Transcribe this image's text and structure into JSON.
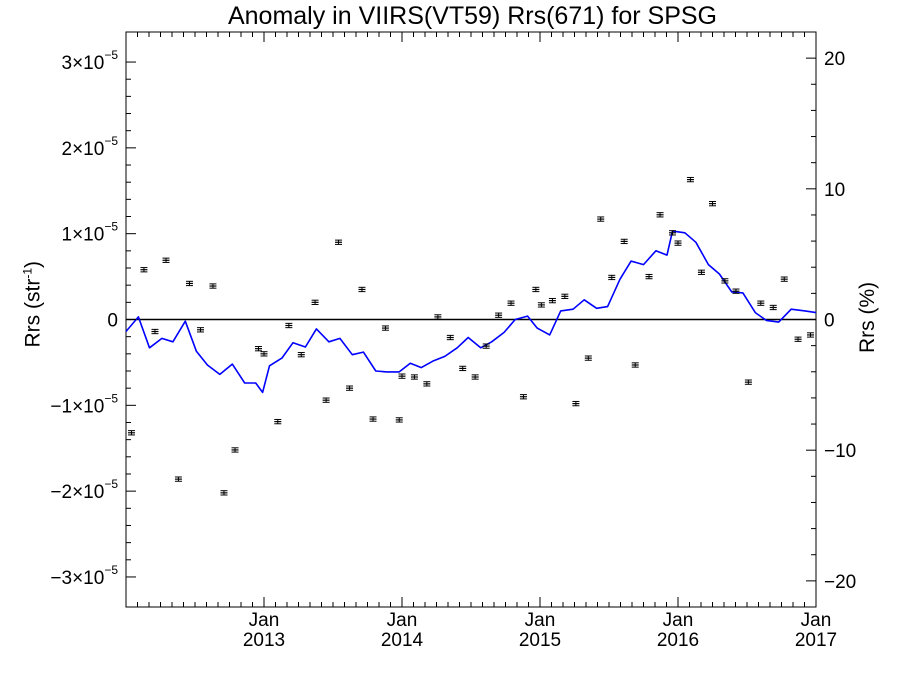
{
  "chart_data": {
    "type": "line",
    "title": "Anomaly in VIIRS(VT59) Rrs(671) for SPSG",
    "ylabel": "Rrs (str",
    "ylabel_sup": "-1",
    "ylabel_suffix": ")",
    "ylabel_right": "Rrs (%)",
    "xlim": [
      2012.0,
      2017.0
    ],
    "ylim": [
      -3.35e-05,
      3.35e-05
    ],
    "ylim_right": [
      -22,
      22
    ],
    "x_ticks": [
      {
        "x": 2013.0,
        "label1": "Jan",
        "label2": "2013"
      },
      {
        "x": 2014.0,
        "label1": "Jan",
        "label2": "2014"
      },
      {
        "x": 2015.0,
        "label1": "Jan",
        "label2": "2015"
      },
      {
        "x": 2016.0,
        "label1": "Jan",
        "label2": "2016"
      },
      {
        "x": 2017.0,
        "label1": "Jan",
        "label2": "2017"
      }
    ],
    "y_ticks": [
      {
        "y": 3e-05,
        "mantissa": "3×10",
        "exp": "−5"
      },
      {
        "y": 2e-05,
        "mantissa": "2×10",
        "exp": "−5"
      },
      {
        "y": 1e-05,
        "mantissa": "1×10",
        "exp": "−5"
      },
      {
        "y": 0,
        "mantissa": "0",
        "exp": ""
      },
      {
        "y": -1e-05,
        "mantissa": "−1×10",
        "exp": "−5"
      },
      {
        "y": -2e-05,
        "mantissa": "−2×10",
        "exp": "−5"
      },
      {
        "y": -3e-05,
        "mantissa": "−3×10",
        "exp": "−5"
      }
    ],
    "y_ticks_right": [
      {
        "y": 20,
        "label": "20"
      },
      {
        "y": 10,
        "label": "10"
      },
      {
        "y": 0,
        "label": "0"
      },
      {
        "y": -10,
        "label": "−10"
      },
      {
        "y": -20,
        "label": "−20"
      }
    ],
    "zero_line": true,
    "colors": {
      "line": "#0000ff",
      "points": "#000000",
      "axis": "#000000"
    },
    "series": [
      {
        "type": "errorbar_points",
        "err": 2.5e-07,
        "points": [
          {
            "x": 2012.04,
            "y": -1.32e-05
          },
          {
            "x": 2012.13,
            "y": 5.8e-06
          },
          {
            "x": 2012.21,
            "y": -1.4e-06
          },
          {
            "x": 2012.29,
            "y": 6.9e-06
          },
          {
            "x": 2012.38,
            "y": -1.86e-05
          },
          {
            "x": 2012.46,
            "y": 4.2e-06
          },
          {
            "x": 2012.54,
            "y": -1.2e-06
          },
          {
            "x": 2012.63,
            "y": 3.9e-06
          },
          {
            "x": 2012.71,
            "y": -2.02e-05
          },
          {
            "x": 2012.79,
            "y": -1.52e-05
          },
          {
            "x": 2012.96,
            "y": -3.4e-06
          },
          {
            "x": 2013.0,
            "y": -4e-06
          },
          {
            "x": 2013.1,
            "y": -1.19e-05
          },
          {
            "x": 2013.18,
            "y": -7e-07
          },
          {
            "x": 2013.27,
            "y": -4.1e-06
          },
          {
            "x": 2013.37,
            "y": 2e-06
          },
          {
            "x": 2013.45,
            "y": -9.4e-06
          },
          {
            "x": 2013.54,
            "y": 9e-06
          },
          {
            "x": 2013.62,
            "y": -8e-06
          },
          {
            "x": 2013.71,
            "y": 3.5e-06
          },
          {
            "x": 2013.79,
            "y": -1.16e-05
          },
          {
            "x": 2013.88,
            "y": -1e-06
          },
          {
            "x": 2013.98,
            "y": -1.17e-05
          },
          {
            "x": 2014.0,
            "y": -6.6e-06
          },
          {
            "x": 2014.09,
            "y": -6.7e-06
          },
          {
            "x": 2014.18,
            "y": -7.5e-06
          },
          {
            "x": 2014.26,
            "y": 3e-07
          },
          {
            "x": 2014.35,
            "y": -2.1e-06
          },
          {
            "x": 2014.44,
            "y": -5.7e-06
          },
          {
            "x": 2014.53,
            "y": -6.7e-06
          },
          {
            "x": 2014.61,
            "y": -3.1e-06
          },
          {
            "x": 2014.7,
            "y": 5e-07
          },
          {
            "x": 2014.79,
            "y": 1.9e-06
          },
          {
            "x": 2014.88,
            "y": -9e-06
          },
          {
            "x": 2014.97,
            "y": 3.5e-06
          },
          {
            "x": 2015.01,
            "y": 1.7e-06
          },
          {
            "x": 2015.09,
            "y": 2.2e-06
          },
          {
            "x": 2015.18,
            "y": 2.7e-06
          },
          {
            "x": 2015.26,
            "y": -9.8e-06
          },
          {
            "x": 2015.35,
            "y": -4.5e-06
          },
          {
            "x": 2015.44,
            "y": 1.17e-05
          },
          {
            "x": 2015.52,
            "y": 4.9e-06
          },
          {
            "x": 2015.61,
            "y": 9.1e-06
          },
          {
            "x": 2015.69,
            "y": -5.3e-06
          },
          {
            "x": 2015.79,
            "y": 5e-06
          },
          {
            "x": 2015.87,
            "y": 1.22e-05
          },
          {
            "x": 2015.96,
            "y": 1.01e-05
          },
          {
            "x": 2016.0,
            "y": 8.9e-06
          },
          {
            "x": 2016.09,
            "y": 1.63e-05
          },
          {
            "x": 2016.17,
            "y": 5.5e-06
          },
          {
            "x": 2016.25,
            "y": 1.35e-05
          },
          {
            "x": 2016.34,
            "y": 4.5e-06
          },
          {
            "x": 2016.42,
            "y": 3.3e-06
          },
          {
            "x": 2016.51,
            "y": -7.3e-06
          },
          {
            "x": 2016.6,
            "y": 1.9e-06
          },
          {
            "x": 2016.69,
            "y": 1.4e-06
          },
          {
            "x": 2016.77,
            "y": 4.7e-06
          },
          {
            "x": 2016.87,
            "y": -2.3e-06
          },
          {
            "x": 2016.96,
            "y": -1.8e-06
          }
        ]
      },
      {
        "type": "line",
        "points": [
          {
            "x": 2012.0,
            "y": -1.4e-06
          },
          {
            "x": 2012.09,
            "y": 3e-07
          },
          {
            "x": 2012.17,
            "y": -3.3e-06
          },
          {
            "x": 2012.26,
            "y": -2.2e-06
          },
          {
            "x": 2012.34,
            "y": -2.6e-06
          },
          {
            "x": 2012.43,
            "y": -2e-07
          },
          {
            "x": 2012.51,
            "y": -3.7e-06
          },
          {
            "x": 2012.59,
            "y": -5.3e-06
          },
          {
            "x": 2012.68,
            "y": -6.4e-06
          },
          {
            "x": 2012.77,
            "y": -5.2e-06
          },
          {
            "x": 2012.86,
            "y": -7.4e-06
          },
          {
            "x": 2012.94,
            "y": -7.4e-06
          },
          {
            "x": 2012.99,
            "y": -8.5e-06
          },
          {
            "x": 2013.04,
            "y": -5.4e-06
          },
          {
            "x": 2013.13,
            "y": -4.5e-06
          },
          {
            "x": 2013.21,
            "y": -2.7e-06
          },
          {
            "x": 2013.3,
            "y": -3.2e-06
          },
          {
            "x": 2013.38,
            "y": -1.1e-06
          },
          {
            "x": 2013.47,
            "y": -2.6e-06
          },
          {
            "x": 2013.55,
            "y": -2.2e-06
          },
          {
            "x": 2013.64,
            "y": -4.1e-06
          },
          {
            "x": 2013.72,
            "y": -3.8e-06
          },
          {
            "x": 2013.81,
            "y": -6e-06
          },
          {
            "x": 2013.89,
            "y": -6.1e-06
          },
          {
            "x": 2013.98,
            "y": -6.1e-06
          },
          {
            "x": 2014.06,
            "y": -5.1e-06
          },
          {
            "x": 2014.14,
            "y": -5.6e-06
          },
          {
            "x": 2014.23,
            "y": -4.8e-06
          },
          {
            "x": 2014.31,
            "y": -4.3e-06
          },
          {
            "x": 2014.4,
            "y": -3.3e-06
          },
          {
            "x": 2014.48,
            "y": -2.1e-06
          },
          {
            "x": 2014.57,
            "y": -3.3e-06
          },
          {
            "x": 2014.65,
            "y": -2.6e-06
          },
          {
            "x": 2014.74,
            "y": -1.5e-06
          },
          {
            "x": 2014.82,
            "y": 0.0
          },
          {
            "x": 2014.91,
            "y": 4e-07
          },
          {
            "x": 2014.98,
            "y": -1e-06
          },
          {
            "x": 2015.07,
            "y": -1.8e-06
          },
          {
            "x": 2015.15,
            "y": 1e-06
          },
          {
            "x": 2015.24,
            "y": 1.2e-06
          },
          {
            "x": 2015.32,
            "y": 2.3e-06
          },
          {
            "x": 2015.41,
            "y": 1.3e-06
          },
          {
            "x": 2015.49,
            "y": 1.5e-06
          },
          {
            "x": 2015.58,
            "y": 4.7e-06
          },
          {
            "x": 2015.66,
            "y": 6.8e-06
          },
          {
            "x": 2015.75,
            "y": 6.4e-06
          },
          {
            "x": 2015.84,
            "y": 8e-06
          },
          {
            "x": 2015.92,
            "y": 7.5e-06
          },
          {
            "x": 2015.96,
            "y": 1.03e-05
          },
          {
            "x": 2016.05,
            "y": 1.01e-05
          },
          {
            "x": 2016.13,
            "y": 9e-06
          },
          {
            "x": 2016.22,
            "y": 6.4e-06
          },
          {
            "x": 2016.3,
            "y": 5.3e-06
          },
          {
            "x": 2016.39,
            "y": 3.2e-06
          },
          {
            "x": 2016.47,
            "y": 3.1e-06
          },
          {
            "x": 2016.56,
            "y": 8e-07
          },
          {
            "x": 2016.64,
            "y": -1e-07
          },
          {
            "x": 2016.73,
            "y": -3e-07
          },
          {
            "x": 2016.82,
            "y": 1.2e-06
          },
          {
            "x": 2016.92,
            "y": 1e-06
          },
          {
            "x": 2017.0,
            "y": 8e-07
          }
        ]
      }
    ]
  }
}
